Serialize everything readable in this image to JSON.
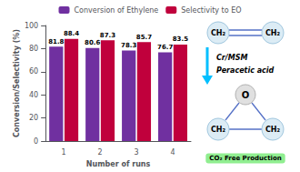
{
  "chart_data": {
    "type": "bar",
    "categories": [
      "1",
      "2",
      "3",
      "4"
    ],
    "xlabel": "Number of runs",
    "ylabel": "Conversion/Selectivity (%)",
    "series": [
      {
        "name": "Conversion of Ethylene",
        "color": "#7030A0",
        "values": [
          81.8,
          80.6,
          78.3,
          76.7
        ]
      },
      {
        "name": "Selectivity to EO",
        "color": "#C0003C",
        "values": [
          88.4,
          87.3,
          85.7,
          83.5
        ]
      }
    ],
    "ylim": [
      0,
      100
    ],
    "yticks": [
      0,
      20,
      40,
      60,
      80,
      100
    ],
    "data_labels": true,
    "legend": "top",
    "grid": false,
    "annotations": [
      "Cr/MSM",
      "Peracetic acid",
      "CH₂",
      "CH₂",
      "CH₂",
      "CH₂",
      "O",
      "CO₂ Free Production"
    ]
  }
}
